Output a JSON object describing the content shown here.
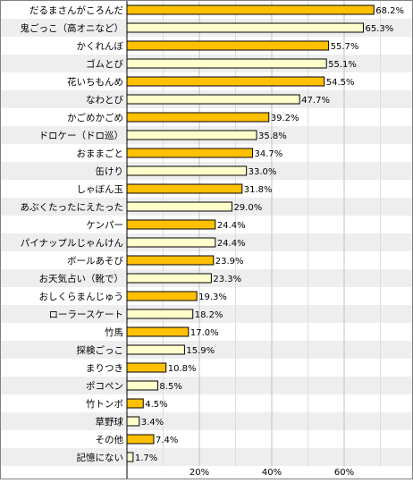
{
  "chart_data": {
    "type": "bar",
    "orientation": "horizontal",
    "categories": [
      "だるまさんがころんだ",
      "鬼ごっこ（高オニなど）",
      "かくれんぼ",
      "ゴムとび",
      "花いちもんめ",
      "なわとび",
      "かごめかごめ",
      "ドロケー（ドロ巡）",
      "おままごと",
      "缶けり",
      "しゃぼん玉",
      "あぶくたったにえたった",
      "ケンパー",
      "パイナップルじゃんけん",
      "ボールあそび",
      "お天気占い（靴で）",
      "おしくらまんじゅう",
      "ローラースケート",
      "竹馬",
      "探検ごっこ",
      "まりつき",
      "ポコペン",
      "竹トンボ",
      "草野球",
      "その他",
      "記憶にない"
    ],
    "values": [
      68.2,
      65.3,
      55.7,
      55.1,
      54.5,
      47.7,
      39.2,
      35.8,
      34.7,
      33.0,
      31.8,
      29.0,
      24.4,
      24.4,
      23.9,
      23.3,
      19.3,
      18.2,
      17.0,
      15.9,
      10.8,
      8.5,
      4.5,
      3.4,
      7.4,
      1.7
    ],
    "value_labels": [
      "68.2%",
      "65.3%",
      "55.7%",
      "55.1%",
      "54.5%",
      "47.7%",
      "39.2%",
      "35.8%",
      "34.7%",
      "33.0%",
      "31.8%",
      "29.0%",
      "24.4%",
      "24.4%",
      "23.9%",
      "23.3%",
      "19.3%",
      "18.2%",
      "17.0%",
      "15.9%",
      "10.8%",
      "8.5%",
      "4.5%",
      "3.4%",
      "7.4%",
      "1.7%"
    ],
    "highlight": [
      false,
      true,
      false,
      true,
      false,
      true,
      false,
      true,
      false,
      true,
      false,
      true,
      false,
      true,
      false,
      true,
      false,
      true,
      false,
      true,
      false,
      true,
      false,
      true,
      false,
      true
    ],
    "xticks": [
      20,
      40,
      60
    ],
    "xtick_labels": [
      "20%",
      "40%",
      "60%"
    ],
    "xlim": [
      0,
      80
    ],
    "grid": true,
    "colors": {
      "bar_orange": "#FFC000",
      "bar_pale": "#FFFFCC",
      "bar_stroke": "#000000",
      "row_alt": "#EEEEEE",
      "grid": "#C0C0C0",
      "frame": "#808080"
    }
  }
}
